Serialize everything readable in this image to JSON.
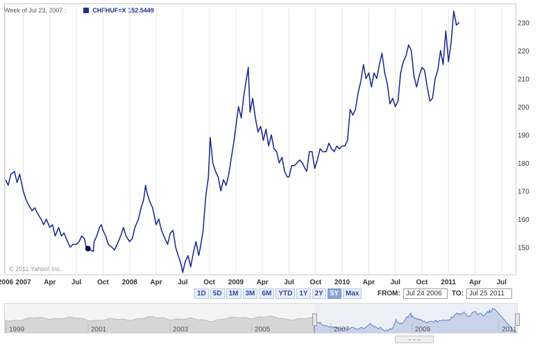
{
  "header": {
    "week_label": "Week of Jul 23, 2007 :",
    "symbol": "CHFHUF=X",
    "quote": "152.5449"
  },
  "copyright": "© 2011 Yahoo! Inc.",
  "range_buttons": [
    "1D",
    "5D",
    "1M",
    "3M",
    "6M",
    "YTD",
    "1Y",
    "2Y",
    "5Y",
    "Max"
  ],
  "range_selected": "5Y",
  "date_range": {
    "from_label": "FROM:",
    "from_value": "Jul 24 2006",
    "to_label": "TO:",
    "to_value": "Jul 25 2011"
  },
  "navigator": {
    "year_labels": [
      "1999",
      "2001",
      "2003",
      "2005",
      "2007",
      "2009",
      "2011"
    ],
    "scroll_glyph": "⌄⌄⌄"
  },
  "colors": {
    "series": "#1f2f8c",
    "grid": "#e3e3e3",
    "navigator_fill": "#d6d6d6",
    "navigator_selected": "#c8d3ea"
  },
  "chart_data": {
    "type": "line",
    "title": "",
    "xlabel": "",
    "ylabel": "",
    "series_name": "CHFHUF=X",
    "x_tick_labels": [
      "2006",
      "2007",
      "Apr",
      "Jul",
      "Oct",
      "2008",
      "Apr",
      "Jul",
      "Oct",
      "2009",
      "Apr",
      "Jul",
      "Oct",
      "2010",
      "Apr",
      "Jul",
      "Oct",
      "2011",
      "Apr",
      "Jul"
    ],
    "x_tick_months": [
      0,
      2,
      5,
      8,
      11,
      14,
      17,
      20,
      23,
      26,
      29,
      32,
      35,
      38,
      41,
      44,
      47,
      50,
      53,
      56
    ],
    "y_ticks": [
      150,
      160,
      170,
      180,
      190,
      200,
      210,
      220,
      230
    ],
    "ylim": [
      140,
      235
    ],
    "xlim_months": [
      0,
      57.5
    ],
    "grid": "vertical",
    "marker": {
      "month": 9.3,
      "value": 149.5
    },
    "points": [
      [
        0.0,
        174
      ],
      [
        0.3,
        172
      ],
      [
        0.6,
        176
      ],
      [
        1.0,
        177
      ],
      [
        1.3,
        173
      ],
      [
        1.6,
        176
      ],
      [
        2.0,
        170
      ],
      [
        2.3,
        167
      ],
      [
        2.6,
        165
      ],
      [
        3.0,
        163
      ],
      [
        3.3,
        164
      ],
      [
        3.6,
        162
      ],
      [
        4.0,
        160
      ],
      [
        4.3,
        158
      ],
      [
        4.6,
        160
      ],
      [
        5.0,
        157
      ],
      [
        5.3,
        158
      ],
      [
        5.6,
        154
      ],
      [
        6.0,
        157
      ],
      [
        6.3,
        154
      ],
      [
        6.6,
        155
      ],
      [
        7.0,
        152
      ],
      [
        7.3,
        150
      ],
      [
        7.6,
        151
      ],
      [
        8.0,
        151
      ],
      [
        8.3,
        152
      ],
      [
        8.6,
        154
      ],
      [
        8.9,
        153
      ],
      [
        9.1,
        150
      ],
      [
        9.3,
        149.5
      ],
      [
        9.6,
        149
      ],
      [
        9.9,
        148.5
      ],
      [
        10.0,
        152
      ],
      [
        10.3,
        154
      ],
      [
        10.6,
        157
      ],
      [
        10.8,
        158
      ],
      [
        11.0,
        156
      ],
      [
        11.3,
        154
      ],
      [
        11.6,
        151
      ],
      [
        12.0,
        150
      ],
      [
        12.3,
        149
      ],
      [
        12.6,
        151
      ],
      [
        13.0,
        154
      ],
      [
        13.3,
        157
      ],
      [
        13.6,
        154
      ],
      [
        14.0,
        152
      ],
      [
        14.3,
        153
      ],
      [
        14.6,
        157
      ],
      [
        15.0,
        160
      ],
      [
        15.3,
        164
      ],
      [
        15.6,
        167
      ],
      [
        15.8,
        172
      ],
      [
        16.0,
        169
      ],
      [
        16.3,
        166
      ],
      [
        16.6,
        164
      ],
      [
        17.0,
        158
      ],
      [
        17.3,
        160
      ],
      [
        17.6,
        156
      ],
      [
        18.0,
        153
      ],
      [
        18.3,
        151
      ],
      [
        18.6,
        155
      ],
      [
        18.9,
        156
      ],
      [
        19.2,
        150
      ],
      [
        19.5,
        147
      ],
      [
        19.8,
        144
      ],
      [
        20.0,
        141
      ],
      [
        20.3,
        145
      ],
      [
        20.6,
        147
      ],
      [
        20.9,
        143
      ],
      [
        21.2,
        148
      ],
      [
        21.5,
        152
      ],
      [
        21.8,
        147
      ],
      [
        22.0,
        150
      ],
      [
        22.3,
        156
      ],
      [
        22.6,
        168
      ],
      [
        22.9,
        175
      ],
      [
        23.1,
        189
      ],
      [
        23.4,
        180
      ],
      [
        23.7,
        177
      ],
      [
        24.0,
        175
      ],
      [
        24.3,
        170
      ],
      [
        24.6,
        174
      ],
      [
        24.9,
        172
      ],
      [
        25.2,
        176
      ],
      [
        25.5,
        182
      ],
      [
        25.8,
        188
      ],
      [
        26.0,
        193
      ],
      [
        26.3,
        200
      ],
      [
        26.6,
        196
      ],
      [
        26.9,
        204
      ],
      [
        27.2,
        210
      ],
      [
        27.4,
        214
      ],
      [
        27.6,
        198
      ],
      [
        27.9,
        203
      ],
      [
        28.2,
        196
      ],
      [
        28.5,
        191
      ],
      [
        28.8,
        193
      ],
      [
        29.1,
        188
      ],
      [
        29.4,
        192
      ],
      [
        29.7,
        186
      ],
      [
        30.0,
        190
      ],
      [
        30.3,
        185
      ],
      [
        30.6,
        184
      ],
      [
        30.9,
        180
      ],
      [
        31.2,
        182
      ],
      [
        31.5,
        177
      ],
      [
        31.8,
        175
      ],
      [
        32.0,
        175
      ],
      [
        32.3,
        179
      ],
      [
        32.6,
        179
      ],
      [
        32.9,
        180
      ],
      [
        33.2,
        181
      ],
      [
        33.5,
        180
      ],
      [
        33.8,
        178
      ],
      [
        34.0,
        177
      ],
      [
        34.3,
        184
      ],
      [
        34.6,
        184
      ],
      [
        34.9,
        178
      ],
      [
        35.2,
        181
      ],
      [
        35.5,
        185
      ],
      [
        35.8,
        184
      ],
      [
        36.2,
        184
      ],
      [
        36.5,
        187
      ],
      [
        36.8,
        185
      ],
      [
        37.1,
        184
      ],
      [
        37.4,
        186
      ],
      [
        37.7,
        185
      ],
      [
        38.0,
        186
      ],
      [
        38.3,
        186
      ],
      [
        38.6,
        188
      ],
      [
        38.9,
        199
      ],
      [
        39.2,
        197
      ],
      [
        39.5,
        199
      ],
      [
        39.8,
        205
      ],
      [
        40.1,
        209
      ],
      [
        40.4,
        215
      ],
      [
        40.7,
        210
      ],
      [
        41.0,
        212
      ],
      [
        41.3,
        207
      ],
      [
        41.6,
        212
      ],
      [
        41.9,
        210
      ],
      [
        42.2,
        215
      ],
      [
        42.5,
        219
      ],
      [
        42.8,
        212
      ],
      [
        43.1,
        208
      ],
      [
        43.4,
        201
      ],
      [
        43.7,
        203
      ],
      [
        44.0,
        200
      ],
      [
        44.3,
        202
      ],
      [
        44.6,
        212
      ],
      [
        44.9,
        216
      ],
      [
        45.2,
        218
      ],
      [
        45.5,
        222
      ],
      [
        45.8,
        220
      ],
      [
        46.1,
        211
      ],
      [
        46.4,
        207
      ],
      [
        46.7,
        211
      ],
      [
        47.0,
        214
      ],
      [
        47.3,
        213
      ],
      [
        47.6,
        207
      ],
      [
        47.9,
        202
      ],
      [
        48.2,
        203
      ],
      [
        48.5,
        210
      ],
      [
        48.8,
        213
      ],
      [
        49.1,
        220
      ],
      [
        49.4,
        215
      ],
      [
        49.7,
        227
      ],
      [
        50.0,
        216
      ],
      [
        50.3,
        223
      ],
      [
        50.6,
        234
      ],
      [
        50.9,
        229
      ],
      [
        51.2,
        230
      ]
    ]
  }
}
